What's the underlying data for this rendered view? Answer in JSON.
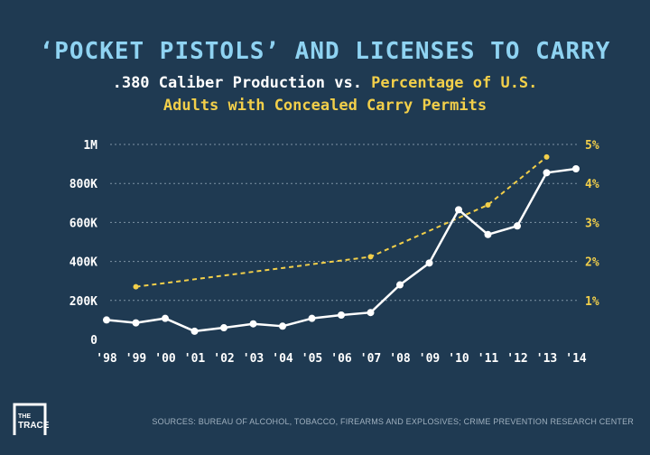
{
  "header": {
    "title": "‘POCKET PISTOLS’ AND LICENSES TO CARRY",
    "subtitle_white": ".380 Caliber Production vs. ",
    "subtitle_yellow_1": "Percentage of U.S.",
    "subtitle_yellow_2": "Adults with Concealed Carry Permits"
  },
  "colors": {
    "background": "#1f3a52",
    "title": "#8fd3f2",
    "production": "#ffffff",
    "permits": "#f2cf4a",
    "grid": "#7f93a5"
  },
  "chart_data": {
    "type": "line",
    "categories": [
      "'98",
      "'99",
      "'00",
      "'01",
      "'02",
      "'03",
      "'04",
      "'05",
      "'06",
      "'07",
      "'08",
      "'09",
      "'10",
      "'11",
      "'12",
      "'13",
      "'14"
    ],
    "left_ticks": [
      "0",
      "200K",
      "400K",
      "600K",
      "800K",
      "1M"
    ],
    "right_ticks": [
      "1%",
      "2%",
      "3%",
      "4%",
      "5%"
    ],
    "ylim_left": [
      0,
      1000000
    ],
    "ylim_right": [
      0,
      5
    ],
    "grid": true,
    "series": [
      {
        "axis": "left",
        "style": "solid",
        "values": [
          100000,
          85000,
          108000,
          42000,
          60000,
          80000,
          68000,
          108000,
          125000,
          138000,
          280000,
          392000,
          665000,
          538000,
          582000,
          855000,
          875000
        ]
      },
      {
        "axis": "right",
        "style": "dashed",
        "values": [
          null,
          1.35,
          null,
          null,
          null,
          null,
          null,
          null,
          null,
          2.12,
          null,
          null,
          null,
          3.45,
          null,
          4.68,
          null
        ]
      }
    ]
  },
  "logo": {
    "text_1": "THE",
    "text_2": "TRACE"
  },
  "source": "SOURCES: BUREAU OF ALCOHOL, TOBACCO, FIREARMS AND EXPLOSIVES; CRIME PREVENTION RESEARCH CENTER"
}
